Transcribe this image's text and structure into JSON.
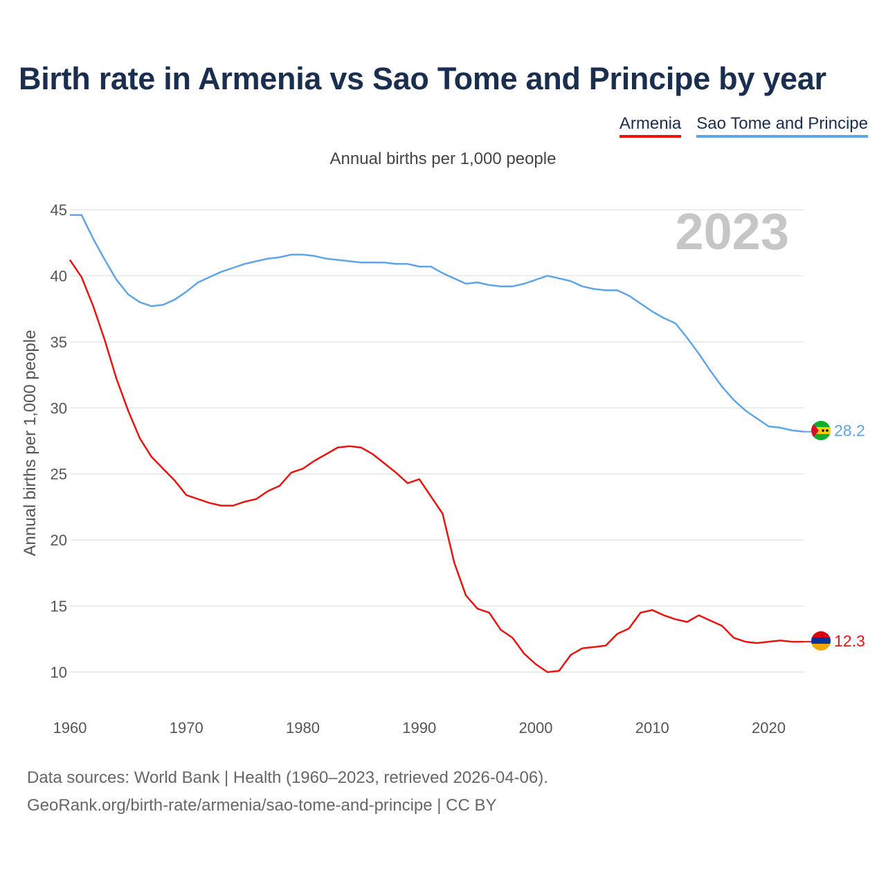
{
  "title": "Birth rate in Armenia vs Sao Tome and Principe by year",
  "legend": {
    "armenia": "Armenia",
    "stp": "Sao Tome and Principe"
  },
  "subtitle": "Annual births per 1,000 people",
  "footer": {
    "line1": "Data sources: World Bank | Health (1960–2023, retrieved 2026-04-06).",
    "line2": "GeoRank.org/birth-rate/armenia/sao-tome-and-principe | CC BY"
  },
  "colors": {
    "armenia": "#e8140f",
    "stp": "#5fa5e6",
    "grid": "#e6e6e6",
    "year": "#c6c6c6"
  },
  "chart_data": {
    "type": "line",
    "title": "Birth rate in Armenia vs Sao Tome and Principe by year",
    "xlabel": "",
    "ylabel": "Annual births per 1,000 people",
    "year_label": "2023",
    "xlim": [
      1960,
      2023
    ],
    "ylim": [
      10,
      45
    ],
    "xticks": [
      1960,
      1970,
      1980,
      1990,
      2000,
      2010,
      2020
    ],
    "yticks": [
      10,
      15,
      20,
      25,
      30,
      35,
      40,
      45
    ],
    "grid": true,
    "legend_position": "top-right",
    "x": [
      1960,
      1961,
      1962,
      1963,
      1964,
      1965,
      1966,
      1967,
      1968,
      1969,
      1970,
      1971,
      1972,
      1973,
      1974,
      1975,
      1976,
      1977,
      1978,
      1979,
      1980,
      1981,
      1982,
      1983,
      1984,
      1985,
      1986,
      1987,
      1988,
      1989,
      1990,
      1991,
      1992,
      1993,
      1994,
      1995,
      1996,
      1997,
      1998,
      1999,
      2000,
      2001,
      2002,
      2003,
      2004,
      2005,
      2006,
      2007,
      2008,
      2009,
      2010,
      2011,
      2012,
      2013,
      2014,
      2015,
      2016,
      2017,
      2018,
      2019,
      2020,
      2021,
      2022,
      2023
    ],
    "series": [
      {
        "name": "Armenia",
        "end_label": "12.3",
        "values": [
          41.2,
          39.9,
          37.7,
          35.1,
          32.2,
          29.8,
          27.7,
          26.3,
          25.4,
          24.5,
          23.4,
          23.1,
          22.8,
          22.6,
          22.6,
          22.9,
          23.1,
          23.7,
          24.1,
          25.1,
          25.4,
          26.0,
          26.5,
          27.0,
          27.1,
          27.0,
          26.5,
          25.8,
          25.1,
          24.3,
          24.6,
          23.3,
          22.0,
          18.3,
          15.8,
          14.8,
          14.5,
          13.2,
          12.6,
          11.4,
          10.6,
          10.0,
          10.1,
          11.3,
          11.8,
          11.9,
          12.0,
          12.9,
          13.3,
          14.5,
          14.7,
          14.3,
          14.0,
          13.8,
          14.3,
          13.9,
          13.5,
          12.6,
          12.3,
          12.2,
          12.3,
          12.4,
          12.3,
          12.3
        ]
      },
      {
        "name": "Sao Tome and Principe",
        "end_label": "28.2",
        "values": [
          44.6,
          44.6,
          42.8,
          41.2,
          39.7,
          38.6,
          38.0,
          37.7,
          37.8,
          38.2,
          38.8,
          39.5,
          39.9,
          40.3,
          40.6,
          40.9,
          41.1,
          41.3,
          41.4,
          41.6,
          41.6,
          41.5,
          41.3,
          41.2,
          41.1,
          41.0,
          41.0,
          41.0,
          40.9,
          40.9,
          40.7,
          40.7,
          40.2,
          39.8,
          39.4,
          39.5,
          39.3,
          39.2,
          39.2,
          39.4,
          39.7,
          40.0,
          39.8,
          39.6,
          39.2,
          39.0,
          38.9,
          38.9,
          38.5,
          37.9,
          37.3,
          36.8,
          36.4,
          35.3,
          34.1,
          32.8,
          31.6,
          30.6,
          29.8,
          29.2,
          28.6,
          28.5,
          28.3,
          28.2
        ]
      }
    ]
  }
}
